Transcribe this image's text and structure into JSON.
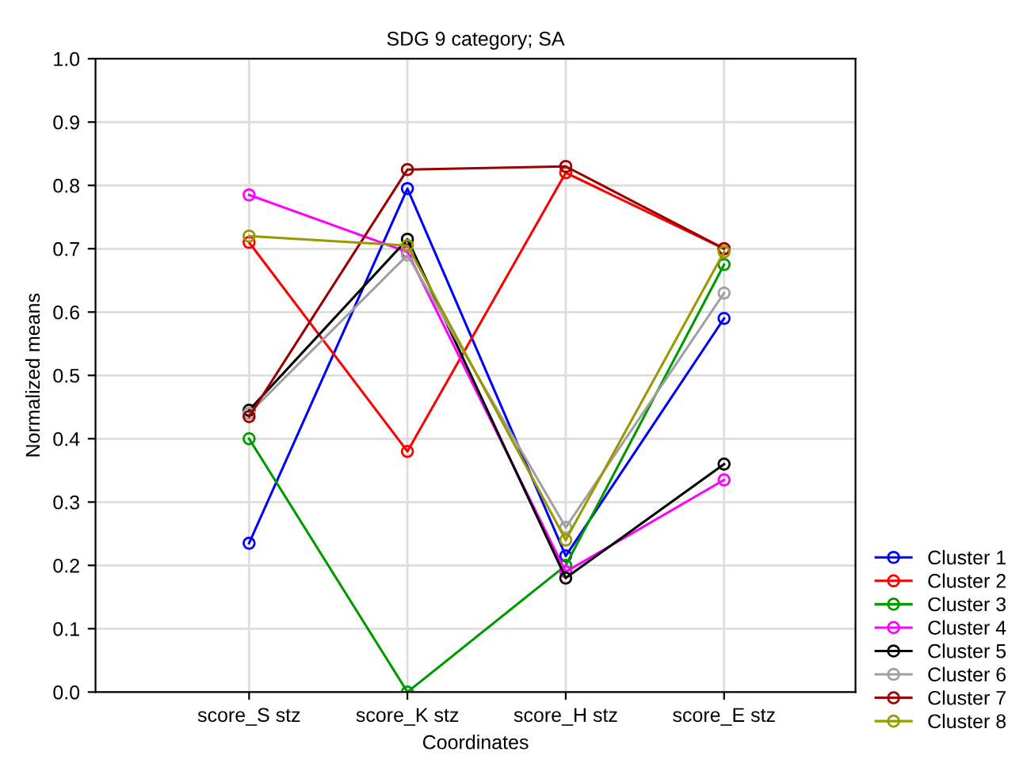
{
  "chart_data": {
    "type": "line",
    "title": "SDG 9 category; SA",
    "xlabel": "Coordinates",
    "ylabel": "Normalized means",
    "categories": [
      "score_S stz",
      "score_K stz",
      "score_H stz",
      "score_E stz"
    ],
    "series": [
      {
        "name": "Cluster 1",
        "color": "#0000ff",
        "values": [
          0.235,
          0.795,
          0.215,
          0.59
        ]
      },
      {
        "name": "Cluster 2",
        "color": "#ff0000",
        "values": [
          0.71,
          0.38,
          0.82,
          0.7
        ]
      },
      {
        "name": "Cluster 3",
        "color": "#009900",
        "values": [
          0.4,
          0.0,
          0.2,
          0.675
        ]
      },
      {
        "name": "Cluster 4",
        "color": "#ff00ff",
        "values": [
          0.785,
          0.695,
          0.19,
          0.335
        ]
      },
      {
        "name": "Cluster 5",
        "color": "#000000",
        "values": [
          0.445,
          0.715,
          0.18,
          0.36
        ]
      },
      {
        "name": "Cluster 6",
        "color": "#a0a0a0",
        "values": [
          0.44,
          0.69,
          0.26,
          0.63
        ]
      },
      {
        "name": "Cluster 7",
        "color": "#990000",
        "values": [
          0.435,
          0.825,
          0.83,
          0.7
        ]
      },
      {
        "name": "Cluster 8",
        "color": "#999900",
        "values": [
          0.72,
          0.705,
          0.24,
          0.695
        ]
      }
    ],
    "ylim": [
      0,
      1
    ],
    "yticks": [
      {
        "value": 0,
        "label": "0.0"
      },
      {
        "value": 0.1,
        "label": "0.1"
      },
      {
        "value": 0.2,
        "label": "0.2"
      },
      {
        "value": 0.3,
        "label": "0.3"
      },
      {
        "value": 0.4,
        "label": "0.4"
      },
      {
        "value": 0.5,
        "label": "0.5"
      },
      {
        "value": 0.6,
        "label": "0.6"
      },
      {
        "value": 0.7,
        "label": "0.7"
      },
      {
        "value": 0.8,
        "label": "0.8"
      },
      {
        "value": 0.9,
        "label": "0.9"
      },
      {
        "value": 1,
        "label": "1.0"
      }
    ],
    "grid": true,
    "legend": "bottom right",
    "marker": "circle",
    "line_style": "solid"
  }
}
